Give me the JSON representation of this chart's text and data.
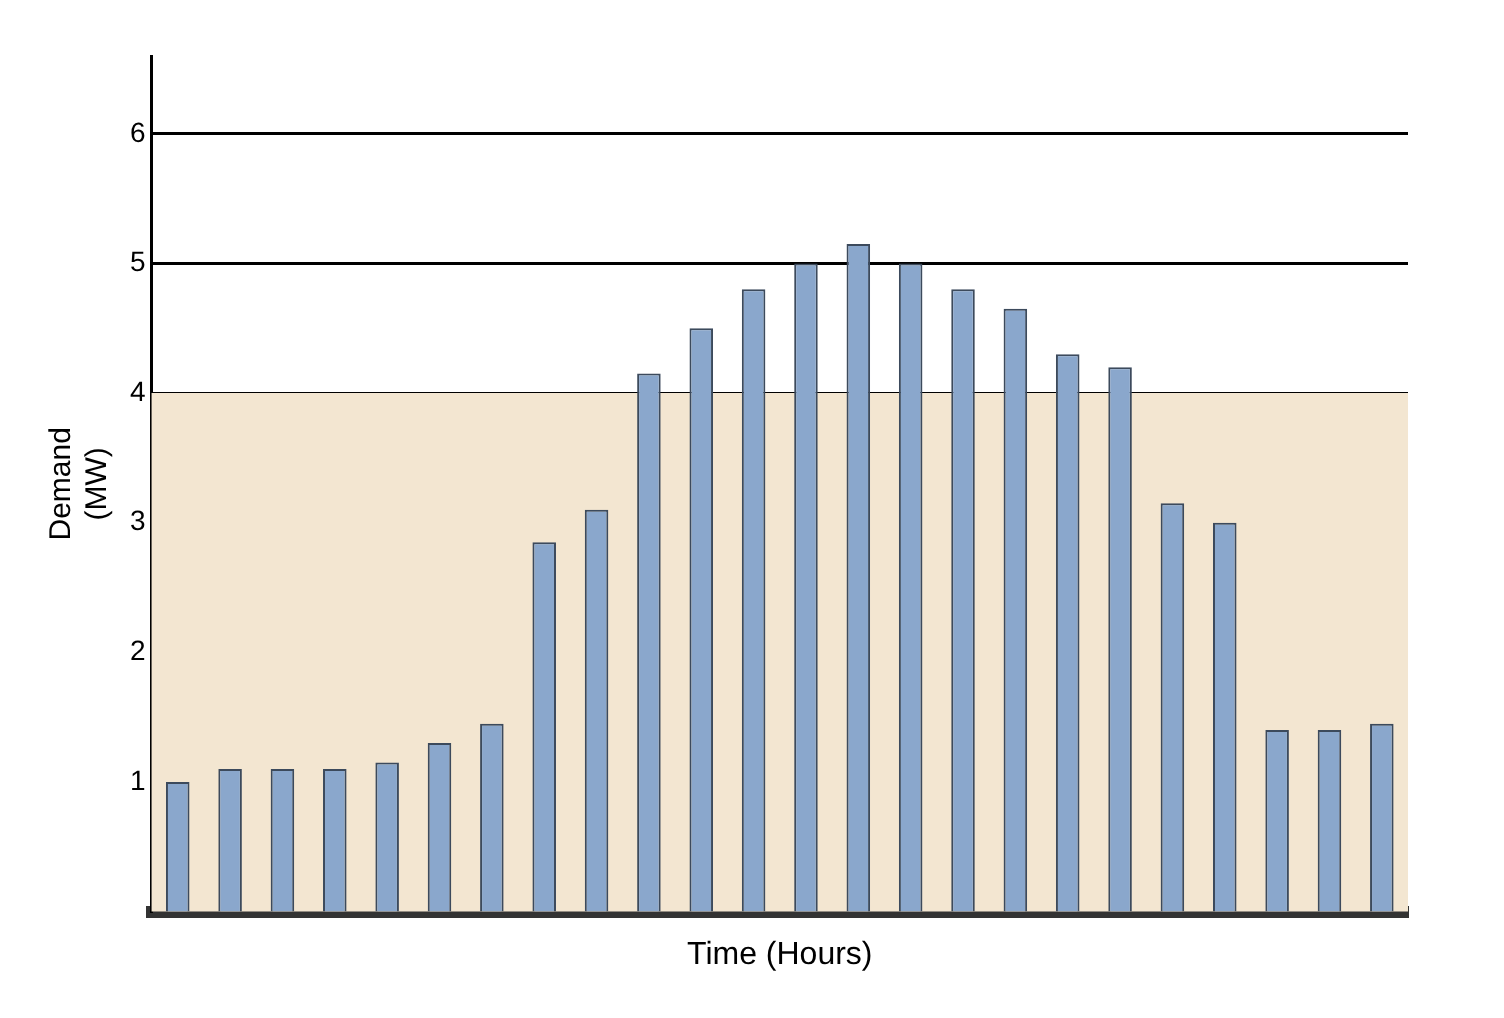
{
  "chart_data": {
    "type": "bar",
    "xlabel": "Time (Hours)",
    "ylabel": "Demand\n(MW)",
    "categories": [
      null,
      null,
      null,
      null,
      null,
      null,
      null,
      null,
      null,
      null,
      null,
      null,
      null,
      null,
      null,
      null,
      null,
      null,
      null,
      null,
      null,
      null,
      null,
      null
    ],
    "values": [
      1.0,
      1.1,
      1.1,
      1.1,
      1.15,
      1.3,
      1.45,
      2.85,
      3.1,
      4.15,
      4.5,
      4.8,
      5.0,
      5.15,
      5.0,
      4.8,
      4.65,
      4.3,
      4.2,
      3.15,
      3.0,
      1.4,
      1.4,
      1.45
    ],
    "color": "#8aa7cc",
    "ylim": [
      0,
      6.6
    ],
    "yticks": [
      1,
      2,
      3,
      4,
      5,
      6
    ],
    "grid": "y",
    "bands": [
      {
        "axis": "y",
        "from": 0,
        "to": 4,
        "color": "#f3e6d1"
      }
    ]
  }
}
